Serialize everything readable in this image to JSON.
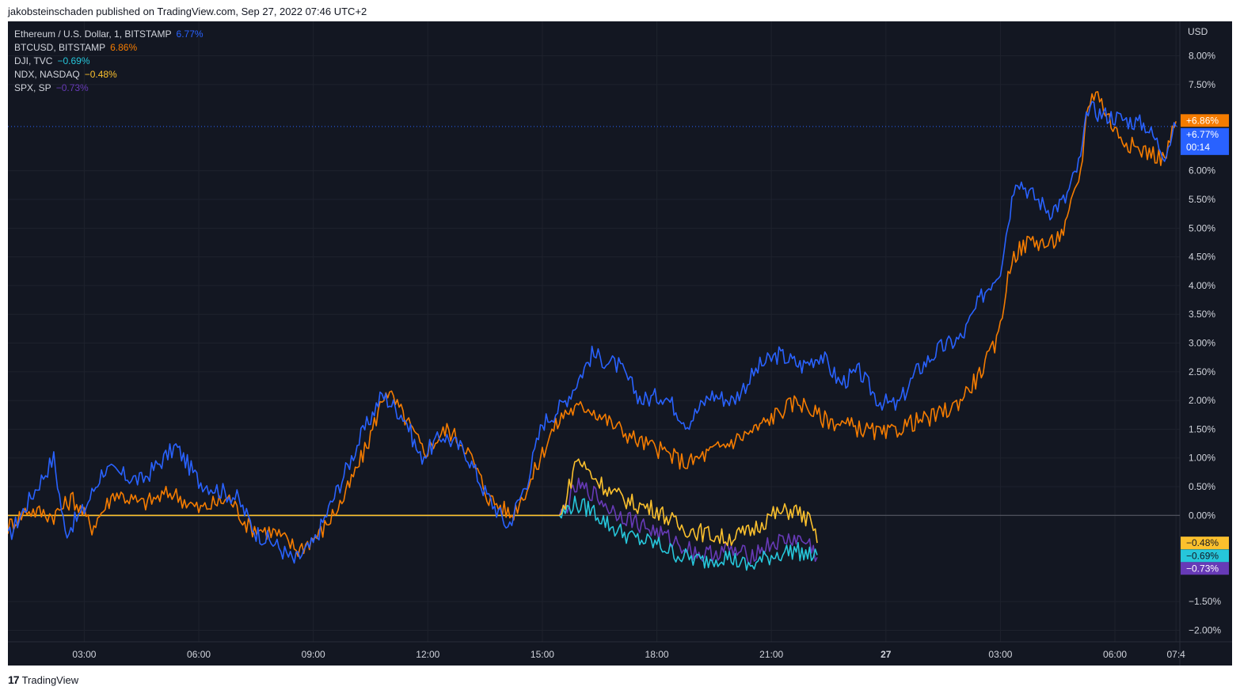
{
  "header": {
    "published_text": "jakobsteinschaden published on TradingView.com, Sep 27, 2022 07:46 UTC+2"
  },
  "footer": {
    "brand": "TradingView",
    "logo_text": "17"
  },
  "colors": {
    "background": "#131722",
    "grid": "#1e222d",
    "text": "#d1d4dc",
    "zero_line": "#5d606b"
  },
  "chart_data": {
    "type": "line",
    "y_unit_label": "USD",
    "ylim": [
      -2.2,
      8.6
    ],
    "y_ticks": [
      {
        "value": 8.0,
        "label": "8.00%"
      },
      {
        "value": 7.5,
        "label": "7.50%"
      },
      {
        "value": 6.0,
        "label": "6.00%"
      },
      {
        "value": 5.5,
        "label": "5.50%"
      },
      {
        "value": 5.0,
        "label": "5.00%"
      },
      {
        "value": 4.5,
        "label": "4.50%"
      },
      {
        "value": 4.0,
        "label": "4.00%"
      },
      {
        "value": 3.5,
        "label": "3.50%"
      },
      {
        "value": 3.0,
        "label": "3.00%"
      },
      {
        "value": 2.5,
        "label": "2.50%"
      },
      {
        "value": 2.0,
        "label": "2.00%"
      },
      {
        "value": 1.5,
        "label": "1.50%"
      },
      {
        "value": 1.0,
        "label": "1.00%"
      },
      {
        "value": 0.5,
        "label": "0.50%"
      },
      {
        "value": 0.0,
        "label": "0.00%"
      },
      {
        "value": -1.5,
        "label": "−1.50%"
      },
      {
        "value": -2.0,
        "label": "−2.00%"
      }
    ],
    "x_range_hours": [
      1.0,
      31.7
    ],
    "x_ticks": [
      {
        "hour": 3,
        "label": "03:00",
        "bold": false
      },
      {
        "hour": 6,
        "label": "06:00",
        "bold": false
      },
      {
        "hour": 9,
        "label": "09:00",
        "bold": false
      },
      {
        "hour": 12,
        "label": "12:00",
        "bold": false
      },
      {
        "hour": 15,
        "label": "15:00",
        "bold": false
      },
      {
        "hour": 18,
        "label": "18:00",
        "bold": false
      },
      {
        "hour": 21,
        "label": "21:00",
        "bold": false
      },
      {
        "hour": 24,
        "label": "27",
        "bold": true
      },
      {
        "hour": 27,
        "label": "03:00",
        "bold": false
      },
      {
        "hour": 30,
        "label": "06:00",
        "bold": false
      },
      {
        "hour": 31.6,
        "label": "07:4",
        "bold": false
      }
    ],
    "series": [
      {
        "name": "Ethereum / U.S. Dollar, 1, BITSTAMP",
        "last_label": "6.77%",
        "badge": "+6.77%",
        "badge_sub": "00:14",
        "color": "#2962ff",
        "points": [
          [
            1.0,
            -0.4
          ],
          [
            1.5,
            0.2
          ],
          [
            2.2,
            1.0
          ],
          [
            2.5,
            -0.3
          ],
          [
            3.0,
            0.1
          ],
          [
            3.5,
            0.8
          ],
          [
            4.5,
            0.6
          ],
          [
            5.4,
            1.2
          ],
          [
            6.0,
            0.6
          ],
          [
            7.0,
            0.3
          ],
          [
            7.5,
            -0.3
          ],
          [
            8.0,
            -0.5
          ],
          [
            8.5,
            -0.8
          ],
          [
            9.0,
            -0.5
          ],
          [
            9.6,
            0.4
          ],
          [
            10.2,
            1.3
          ],
          [
            10.8,
            2.1
          ],
          [
            11.4,
            1.7
          ],
          [
            11.8,
            1.0
          ],
          [
            12.4,
            1.4
          ],
          [
            13.0,
            1.1
          ],
          [
            13.5,
            0.4
          ],
          [
            14.1,
            -0.2
          ],
          [
            14.6,
            0.6
          ],
          [
            15.0,
            1.6
          ],
          [
            15.5,
            1.9
          ],
          [
            15.8,
            2.2
          ],
          [
            16.3,
            2.8
          ],
          [
            17.0,
            2.6
          ],
          [
            17.6,
            2.0
          ],
          [
            18.2,
            2.1
          ],
          [
            18.8,
            1.6
          ],
          [
            19.4,
            2.1
          ],
          [
            20.0,
            2.0
          ],
          [
            20.7,
            2.6
          ],
          [
            21.2,
            2.8
          ],
          [
            21.8,
            2.6
          ],
          [
            22.3,
            2.8
          ],
          [
            22.8,
            2.3
          ],
          [
            23.3,
            2.5
          ],
          [
            23.8,
            2.0
          ],
          [
            24.3,
            1.9
          ],
          [
            24.8,
            2.5
          ],
          [
            25.4,
            2.9
          ],
          [
            26.0,
            3.1
          ],
          [
            26.5,
            3.8
          ],
          [
            27.0,
            4.3
          ],
          [
            27.4,
            5.9
          ],
          [
            27.8,
            5.6
          ],
          [
            28.3,
            5.3
          ],
          [
            28.7,
            5.5
          ],
          [
            29.1,
            6.2
          ],
          [
            29.3,
            7.1
          ],
          [
            29.6,
            7.0
          ],
          [
            30.2,
            6.9
          ],
          [
            30.8,
            6.8
          ],
          [
            31.3,
            6.3
          ],
          [
            31.6,
            6.77
          ]
        ]
      },
      {
        "name": "BTCUSD, BITSTAMP",
        "last_label": "6.86%",
        "badge": "+6.86%",
        "color": "#f57c00",
        "points": [
          [
            1.0,
            -0.2
          ],
          [
            1.5,
            0.1
          ],
          [
            2.2,
            0.0
          ],
          [
            2.7,
            0.3
          ],
          [
            3.2,
            -0.2
          ],
          [
            3.8,
            0.4
          ],
          [
            4.5,
            0.2
          ],
          [
            5.3,
            0.4
          ],
          [
            6.0,
            0.1
          ],
          [
            6.8,
            0.3
          ],
          [
            7.3,
            -0.2
          ],
          [
            8.0,
            -0.3
          ],
          [
            8.6,
            -0.6
          ],
          [
            9.2,
            -0.3
          ],
          [
            9.8,
            0.3
          ],
          [
            10.4,
            1.2
          ],
          [
            10.9,
            2.2
          ],
          [
            11.4,
            1.7
          ],
          [
            11.9,
            1.1
          ],
          [
            12.5,
            1.5
          ],
          [
            13.0,
            1.2
          ],
          [
            13.6,
            0.3
          ],
          [
            14.2,
            0.0
          ],
          [
            14.7,
            0.6
          ],
          [
            15.2,
            1.4
          ],
          [
            15.6,
            1.8
          ],
          [
            16.2,
            1.9
          ],
          [
            16.8,
            1.6
          ],
          [
            17.5,
            1.3
          ],
          [
            18.2,
            1.1
          ],
          [
            18.8,
            0.9
          ],
          [
            19.4,
            1.1
          ],
          [
            20.0,
            1.3
          ],
          [
            20.6,
            1.5
          ],
          [
            21.2,
            1.8
          ],
          [
            21.7,
            2.0
          ],
          [
            22.3,
            1.7
          ],
          [
            22.8,
            1.6
          ],
          [
            23.4,
            1.5
          ],
          [
            24.0,
            1.4
          ],
          [
            24.6,
            1.6
          ],
          [
            25.2,
            1.7
          ],
          [
            25.8,
            1.9
          ],
          [
            26.4,
            2.4
          ],
          [
            26.9,
            3.0
          ],
          [
            27.3,
            4.5
          ],
          [
            27.8,
            4.8
          ],
          [
            28.3,
            4.7
          ],
          [
            28.7,
            5.0
          ],
          [
            29.1,
            6.0
          ],
          [
            29.3,
            7.2
          ],
          [
            29.5,
            7.4
          ],
          [
            30.0,
            6.7
          ],
          [
            30.5,
            6.4
          ],
          [
            31.0,
            6.3
          ],
          [
            31.3,
            6.2
          ],
          [
            31.6,
            6.86
          ]
        ]
      },
      {
        "name": "DJI, TVC",
        "last_label": "−0.69%",
        "badge": "−0.69%",
        "color": "#26c6da",
        "points": [
          [
            1.0,
            0.0
          ],
          [
            15.5,
            0.0
          ],
          [
            15.8,
            0.2
          ],
          [
            16.3,
            0.1
          ],
          [
            16.8,
            -0.2
          ],
          [
            17.4,
            -0.4
          ],
          [
            18.0,
            -0.5
          ],
          [
            18.6,
            -0.7
          ],
          [
            19.2,
            -0.8
          ],
          [
            19.8,
            -0.7
          ],
          [
            20.4,
            -0.9
          ],
          [
            21.0,
            -0.7
          ],
          [
            21.6,
            -0.6
          ],
          [
            22.0,
            -0.7
          ],
          [
            22.2,
            -0.69
          ]
        ]
      },
      {
        "name": "NDX, NASDAQ",
        "last_label": "−0.48%",
        "badge": "−0.48%",
        "color": "#fbc02d",
        "points": [
          [
            1.0,
            0.0
          ],
          [
            15.5,
            0.0
          ],
          [
            15.9,
            1.0
          ],
          [
            16.3,
            0.7
          ],
          [
            16.8,
            0.4
          ],
          [
            17.4,
            0.2
          ],
          [
            18.0,
            0.1
          ],
          [
            18.6,
            -0.2
          ],
          [
            19.2,
            -0.3
          ],
          [
            19.8,
            -0.4
          ],
          [
            20.4,
            -0.3
          ],
          [
            21.0,
            0.0
          ],
          [
            21.6,
            0.1
          ],
          [
            22.0,
            -0.1
          ],
          [
            22.2,
            -0.48
          ]
        ]
      },
      {
        "name": "SPX, SP",
        "last_label": "−0.73%",
        "badge": "−0.73%",
        "color": "#673ab7",
        "points": [
          [
            1.0,
            0.0
          ],
          [
            15.5,
            0.0
          ],
          [
            15.9,
            0.5
          ],
          [
            16.3,
            0.4
          ],
          [
            16.8,
            0.1
          ],
          [
            17.4,
            -0.1
          ],
          [
            18.0,
            -0.3
          ],
          [
            18.6,
            -0.5
          ],
          [
            19.2,
            -0.7
          ],
          [
            19.8,
            -0.6
          ],
          [
            20.4,
            -0.7
          ],
          [
            21.0,
            -0.5
          ],
          [
            21.6,
            -0.4
          ],
          [
            22.0,
            -0.5
          ],
          [
            22.2,
            -0.73
          ]
        ]
      }
    ]
  }
}
